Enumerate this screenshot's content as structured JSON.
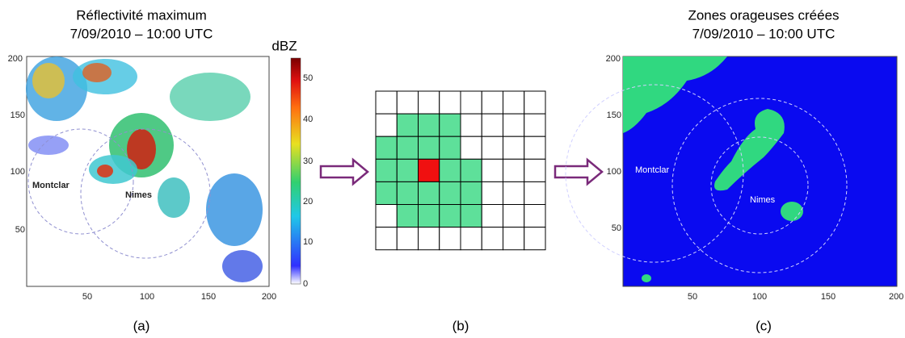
{
  "panel_a": {
    "title": [
      "Réflectivité maximum",
      "7/09/2010 – 10:00 UTC"
    ],
    "colorbar": {
      "label": "dBZ",
      "ticks": [
        0,
        10,
        20,
        30,
        40,
        50
      ]
    },
    "xticks": [
      50,
      100,
      150,
      200
    ],
    "yticks": [
      200,
      150,
      100,
      50
    ],
    "places": [
      "Montclar",
      "Nimes"
    ],
    "caption": "(a)"
  },
  "panel_b": {
    "caption": "(b)"
  },
  "panel_c": {
    "title": [
      "Zones orageuses créées",
      "7/09/2010 – 10:00 UTC"
    ],
    "xticks": [
      50,
      100,
      150,
      200
    ],
    "yticks": [
      200,
      150,
      100,
      50
    ],
    "places": [
      "Montclar",
      "Nimes"
    ],
    "caption": "(c)"
  }
}
